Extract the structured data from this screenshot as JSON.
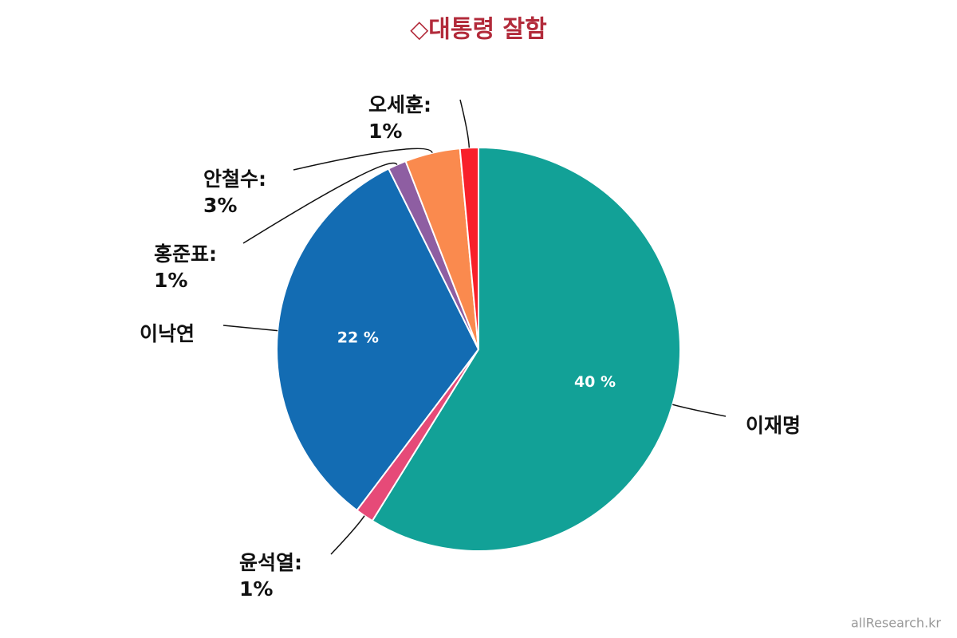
{
  "chart_data": {
    "type": "pie",
    "title": "◇대통령 잘함",
    "categories": [
      "이재명",
      "윤석열",
      "이낙연",
      "홍준표",
      "안철수",
      "오세훈"
    ],
    "values": [
      40,
      1,
      22,
      1,
      3,
      1
    ],
    "value_labels": [
      "40 %",
      "1%",
      "22 %",
      "1%",
      "3%",
      "1%"
    ],
    "colors": [
      "#12a197",
      "#e64a78",
      "#136cb3",
      "#8e5ea2",
      "#fa8a4e",
      "#f8202a"
    ],
    "label_separator": ":"
  },
  "watermark": "allResearch.kr"
}
